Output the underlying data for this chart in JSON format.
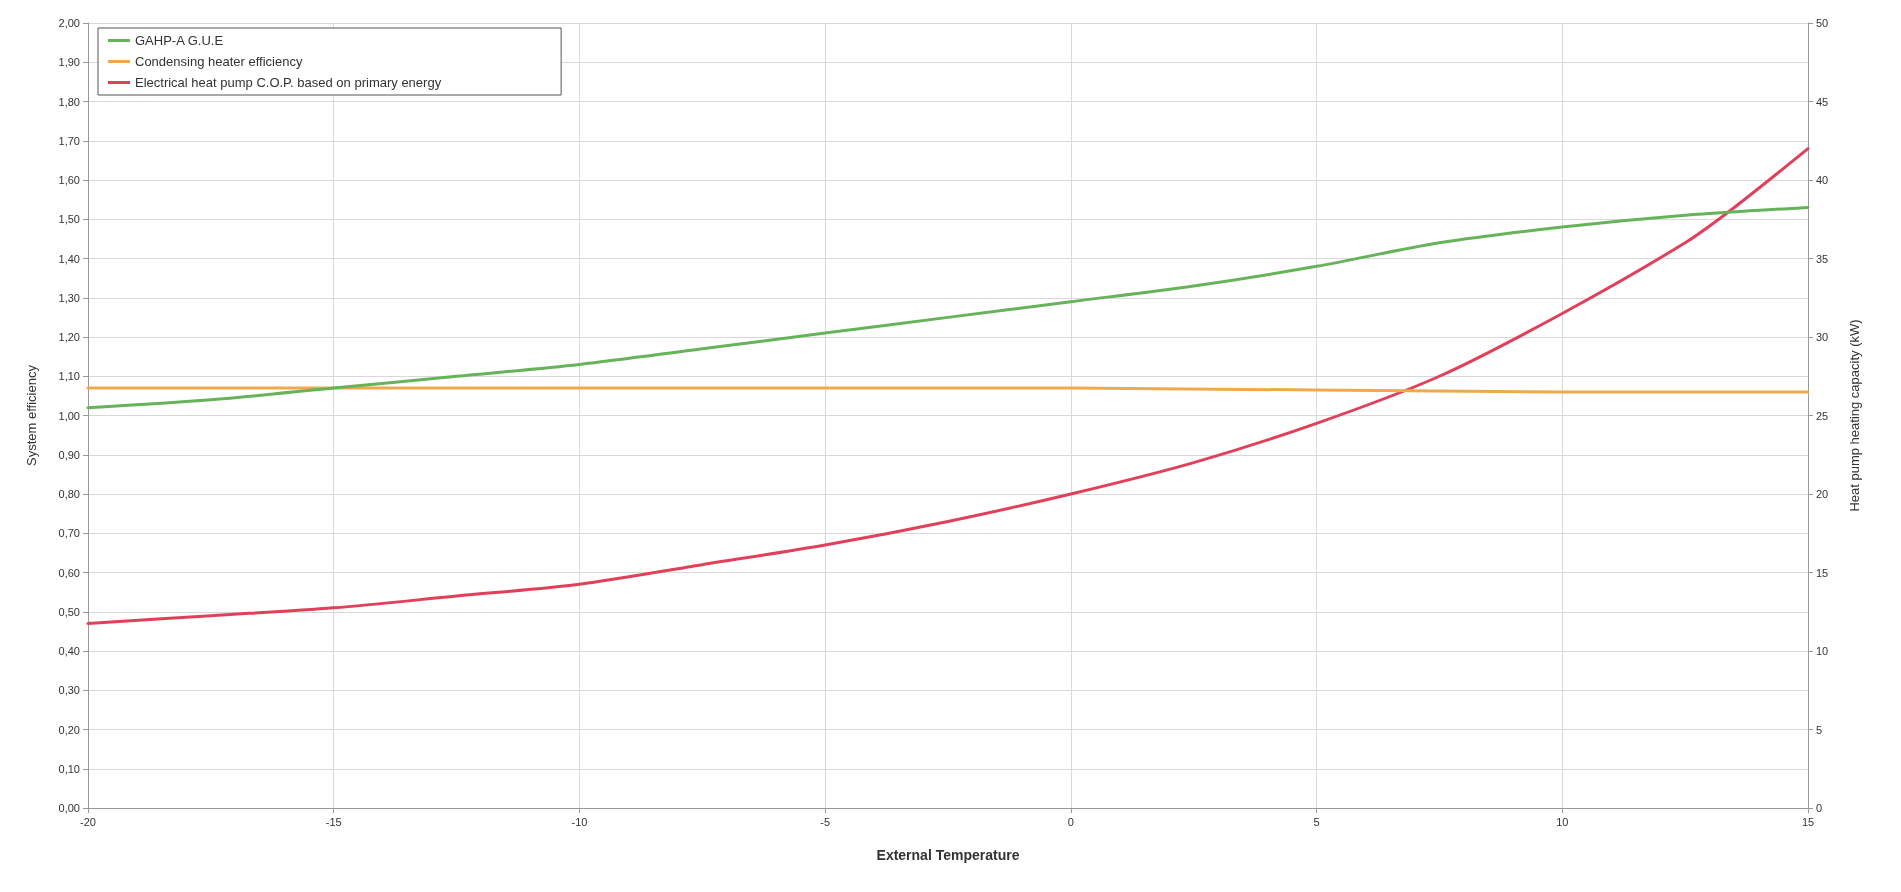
{
  "chart_data": {
    "type": "line",
    "xlabel": "External Temperature",
    "ylabel": "System efficiency",
    "y2label": "Heat pump heating capacity (kW)",
    "xlim": [
      -20,
      15
    ],
    "xticks": [
      -20,
      -15,
      -10,
      -5,
      0,
      5,
      10,
      15
    ],
    "ylim": [
      0,
      2
    ],
    "yticks": [
      {
        "value": 0,
        "label": "0,00"
      },
      {
        "value": 0.1,
        "label": "0,10"
      },
      {
        "value": 0.2,
        "label": "0,20"
      },
      {
        "value": 0.3,
        "label": "0,30"
      },
      {
        "value": 0.4,
        "label": "0,40"
      },
      {
        "value": 0.5,
        "label": "0,50"
      },
      {
        "value": 0.6,
        "label": "0,60"
      },
      {
        "value": 0.7,
        "label": "0,70"
      },
      {
        "value": 0.8,
        "label": "0,80"
      },
      {
        "value": 0.9,
        "label": "0,90"
      },
      {
        "value": 1,
        "label": "1,00"
      },
      {
        "value": 1.1,
        "label": "1,10"
      },
      {
        "value": 1.2,
        "label": "1,20"
      },
      {
        "value": 1.3,
        "label": "1,30"
      },
      {
        "value": 1.4,
        "label": "1,40"
      },
      {
        "value": 1.5,
        "label": "1,50"
      },
      {
        "value": 1.6,
        "label": "1,60"
      },
      {
        "value": 1.7,
        "label": "1,70"
      },
      {
        "value": 1.8,
        "label": "1,80"
      },
      {
        "value": 1.9,
        "label": "1,90"
      },
      {
        "value": 2,
        "label": "2,00"
      }
    ],
    "y2lim": [
      0,
      50
    ],
    "y2ticks": [
      0,
      5,
      10,
      15,
      20,
      25,
      30,
      35,
      40,
      45,
      50
    ],
    "grid": true,
    "legend": "top left",
    "marker": "none",
    "line_style": "solid",
    "series": [
      {
        "name": "GAHP-A G.U.E",
        "color": "#66b35a",
        "x": [
          -20,
          -17.5,
          -15,
          -12.5,
          -10,
          -7.5,
          -5,
          -2.5,
          0,
          2.5,
          5,
          7.5,
          10,
          12.5,
          15
        ],
        "values": [
          1.02,
          1.04,
          1.07,
          1.1,
          1.13,
          1.17,
          1.21,
          1.25,
          1.29,
          1.33,
          1.38,
          1.44,
          1.48,
          1.51,
          1.53
        ]
      },
      {
        "name": "Condensing heater efficiency",
        "color": "#f0a94a",
        "x": [
          -20,
          -10,
          0,
          10,
          15
        ],
        "values": [
          1.07,
          1.07,
          1.07,
          1.06,
          1.06
        ]
      },
      {
        "name": "Electrical heat pump C.O.P. based on primary energy",
        "color": "#e0405a",
        "x": [
          -20,
          -17.5,
          -15,
          -12.5,
          -10,
          -7.5,
          -5,
          -2.5,
          0,
          2.5,
          5,
          7.5,
          10,
          12.5,
          13.5,
          15
        ],
        "values": [
          0.47,
          0.49,
          0.51,
          0.54,
          0.57,
          0.62,
          0.67,
          0.73,
          0.8,
          0.88,
          0.98,
          1.1,
          1.26,
          1.44,
          1.53,
          1.68
        ]
      }
    ]
  }
}
